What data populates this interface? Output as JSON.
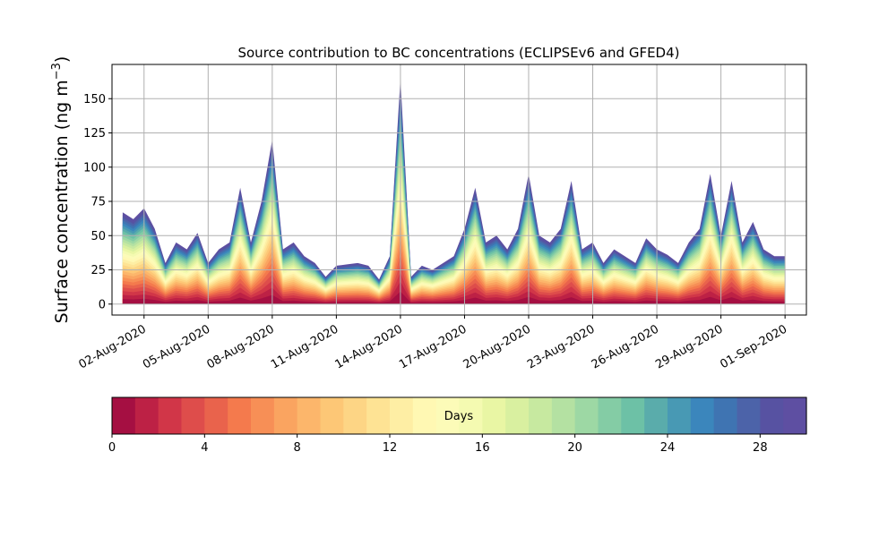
{
  "chart_data": {
    "type": "area",
    "title": "Source contribution to BC concentrations (ECLIPSEv6 and GFED4)",
    "xlabel": "",
    "ylabel": "Surface concentration (ng m",
    "ylabel_exponent": "−3",
    "ylabel_close": ")",
    "ylim": [
      -8,
      175
    ],
    "xlim": [
      "2020-07-31T12:00",
      "2020-09-02T00:00"
    ],
    "grid": true,
    "y_ticks": [
      0,
      25,
      50,
      75,
      100,
      125,
      150
    ],
    "x_ticks": [
      "02-Aug-2020",
      "05-Aug-2020",
      "08-Aug-2020",
      "11-Aug-2020",
      "14-Aug-2020",
      "17-Aug-2020",
      "20-Aug-2020",
      "23-Aug-2020",
      "26-Aug-2020",
      "29-Aug-2020",
      "01-Sep-2020"
    ],
    "x_tick_dates": [
      "2020-08-02",
      "2020-08-05",
      "2020-08-08",
      "2020-08-11",
      "2020-08-14",
      "2020-08-17",
      "2020-08-20",
      "2020-08-23",
      "2020-08-26",
      "2020-08-29",
      "2020-09-01"
    ],
    "total_series": {
      "x": [
        "2020-08-01T00:00",
        "2020-08-01T12:00",
        "2020-08-02T00:00",
        "2020-08-02T12:00",
        "2020-08-03T00:00",
        "2020-08-03T12:00",
        "2020-08-04T00:00",
        "2020-08-04T12:00",
        "2020-08-05T00:00",
        "2020-08-05T12:00",
        "2020-08-06T00:00",
        "2020-08-06T12:00",
        "2020-08-07T00:00",
        "2020-08-07T12:00",
        "2020-08-08T00:00",
        "2020-08-08T12:00",
        "2020-08-09T00:00",
        "2020-08-09T12:00",
        "2020-08-10T00:00",
        "2020-08-10T12:00",
        "2020-08-11T00:00",
        "2020-08-11T12:00",
        "2020-08-12T00:00",
        "2020-08-12T12:00",
        "2020-08-13T00:00",
        "2020-08-13T12:00",
        "2020-08-14T00:00",
        "2020-08-14T12:00",
        "2020-08-15T00:00",
        "2020-08-15T12:00",
        "2020-08-16T00:00",
        "2020-08-16T12:00",
        "2020-08-17T00:00",
        "2020-08-17T12:00",
        "2020-08-18T00:00",
        "2020-08-18T12:00",
        "2020-08-19T00:00",
        "2020-08-19T12:00",
        "2020-08-20T00:00",
        "2020-08-20T12:00",
        "2020-08-21T00:00",
        "2020-08-21T12:00",
        "2020-08-22T00:00",
        "2020-08-22T12:00",
        "2020-08-23T00:00",
        "2020-08-23T12:00",
        "2020-08-24T00:00",
        "2020-08-24T12:00",
        "2020-08-25T00:00",
        "2020-08-25T12:00",
        "2020-08-26T00:00",
        "2020-08-26T12:00",
        "2020-08-27T00:00",
        "2020-08-27T12:00",
        "2020-08-28T00:00",
        "2020-08-28T12:00",
        "2020-08-29T00:00",
        "2020-08-29T12:00",
        "2020-08-30T00:00",
        "2020-08-30T12:00",
        "2020-08-31T00:00",
        "2020-08-31T12:00",
        "2020-09-01T00:00"
      ],
      "y": [
        67,
        62,
        70,
        55,
        30,
        45,
        40,
        52,
        30,
        40,
        45,
        85,
        45,
        75,
        120,
        40,
        45,
        35,
        30,
        20,
        28,
        29,
        30,
        28,
        18,
        35,
        165,
        20,
        28,
        25,
        30,
        35,
        55,
        85,
        45,
        50,
        40,
        55,
        95,
        50,
        45,
        55,
        90,
        40,
        45,
        30,
        40,
        35,
        30,
        48,
        40,
        36,
        30,
        45,
        55,
        95,
        50,
        90,
        45,
        60,
        40,
        35,
        35
      ]
    },
    "colorbar": {
      "label": "Days",
      "min": 0,
      "max": 30,
      "n_colors": 30,
      "ticks": [
        0,
        4,
        8,
        12,
        16,
        20,
        24,
        28
      ],
      "colors": [
        "#a50f42",
        "#bd2145",
        "#d13648",
        "#de4d4b",
        "#e9634c",
        "#f47a4d",
        "#f78f56",
        "#faa460",
        "#fcb66b",
        "#fdc776",
        "#fdd585",
        "#fee394",
        "#feeea4",
        "#fff8b3",
        "#fcfbb8",
        "#f4fab1",
        "#e9f6a4",
        "#d9f0a0",
        "#c7e9a0",
        "#b4e1a2",
        "#9dd8a4",
        "#84cca5",
        "#6dc1a6",
        "#5aacab",
        "#4899b4",
        "#3b86bc",
        "#3f74b2",
        "#4c63a9",
        "#5752a2",
        "#5e4fa2"
      ]
    }
  }
}
